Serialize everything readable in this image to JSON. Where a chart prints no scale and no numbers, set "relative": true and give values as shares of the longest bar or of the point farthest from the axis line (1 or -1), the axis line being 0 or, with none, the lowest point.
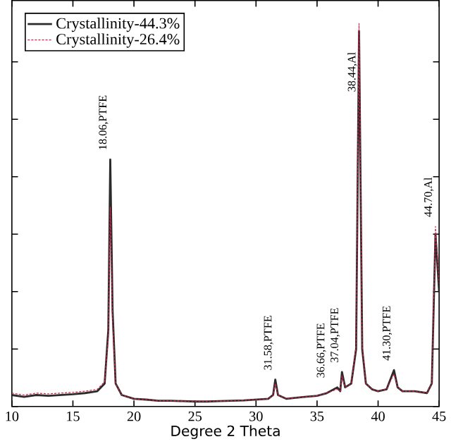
{
  "chart_data": {
    "type": "line",
    "relative": true,
    "xlabel": "Degree 2 Theta",
    "xlim": [
      10,
      45
    ],
    "xticks": [
      10,
      15,
      20,
      25,
      30,
      35,
      40,
      45
    ],
    "tick_labels": "x",
    "legend": "top left",
    "grid": false,
    "marker": "none",
    "series": [
      {
        "name": "Crystallinity-44.3%",
        "color": "#2b2b2b",
        "line_style": "solid",
        "x": [
          10,
          11,
          12,
          13,
          14,
          15,
          16,
          17,
          17.6,
          17.9,
          18.06,
          18.25,
          18.5,
          19,
          20,
          21,
          22,
          23,
          24,
          25,
          26,
          27,
          28,
          29,
          30,
          31,
          31.4,
          31.58,
          31.8,
          32.5,
          33,
          34,
          35,
          35.8,
          36.66,
          36.9,
          37.04,
          37.3,
          37.8,
          38.2,
          38.44,
          38.7,
          39,
          39.5,
          40,
          40.7,
          41.3,
          41.6,
          42,
          43,
          44,
          44.4,
          44.7,
          45
        ],
        "values": [
          0.03,
          0.025,
          0.03,
          0.028,
          0.03,
          0.032,
          0.035,
          0.04,
          0.06,
          0.2,
          0.645,
          0.25,
          0.06,
          0.03,
          0.02,
          0.018,
          0.015,
          0.015,
          0.014,
          0.013,
          0.013,
          0.014,
          0.015,
          0.016,
          0.018,
          0.02,
          0.03,
          0.07,
          0.03,
          0.02,
          0.022,
          0.025,
          0.028,
          0.035,
          0.05,
          0.04,
          0.09,
          0.05,
          0.06,
          0.15,
          0.98,
          0.15,
          0.06,
          0.045,
          0.04,
          0.045,
          0.095,
          0.05,
          0.04,
          0.04,
          0.035,
          0.06,
          0.45,
          0.3
        ]
      },
      {
        "name": "Crystallinity-26.4%",
        "color": "#d6204a",
        "line_style": "dashed",
        "x": [
          10,
          11,
          12,
          13,
          14,
          15,
          16,
          17,
          17.6,
          17.9,
          18.06,
          18.25,
          18.5,
          19,
          20,
          21,
          22,
          23,
          24,
          25,
          26,
          27,
          28,
          29,
          30,
          31,
          31.4,
          31.58,
          31.8,
          32.5,
          33,
          34,
          35,
          35.8,
          36.66,
          36.9,
          37.04,
          37.3,
          37.8,
          38.2,
          38.44,
          38.7,
          39,
          39.5,
          40,
          40.7,
          41.3,
          41.6,
          42,
          43,
          44,
          44.4,
          44.7,
          45
        ],
        "values": [
          0.035,
          0.03,
          0.035,
          0.033,
          0.035,
          0.037,
          0.04,
          0.045,
          0.065,
          0.18,
          0.52,
          0.22,
          0.06,
          0.03,
          0.02,
          0.018,
          0.015,
          0.015,
          0.014,
          0.013,
          0.013,
          0.014,
          0.015,
          0.016,
          0.018,
          0.02,
          0.028,
          0.06,
          0.03,
          0.02,
          0.022,
          0.025,
          0.028,
          0.035,
          0.045,
          0.04,
          0.08,
          0.05,
          0.06,
          0.16,
          1,
          0.16,
          0.06,
          0.045,
          0.04,
          0.045,
          0.085,
          0.05,
          0.04,
          0.04,
          0.035,
          0.06,
          0.47,
          0.32
        ]
      }
    ],
    "annotations": [
      {
        "text": "18.06,PTFE",
        "x": 18.06,
        "y": 0.645
      },
      {
        "text": "31.58,PTFE",
        "x": 31.58,
        "y": 0.07
      },
      {
        "text": "36.66,PTFE",
        "x": 36.66,
        "y": 0.05
      },
      {
        "text": "37.04,PTFE",
        "x": 37.04,
        "y": 0.09
      },
      {
        "text": "38.44,Al",
        "x": 38.44,
        "y": 1
      },
      {
        "text": "41.30,PTFE",
        "x": 41.3,
        "y": 0.095
      },
      {
        "text": "44.70,Al",
        "x": 44.7,
        "y": 0.47
      }
    ]
  }
}
